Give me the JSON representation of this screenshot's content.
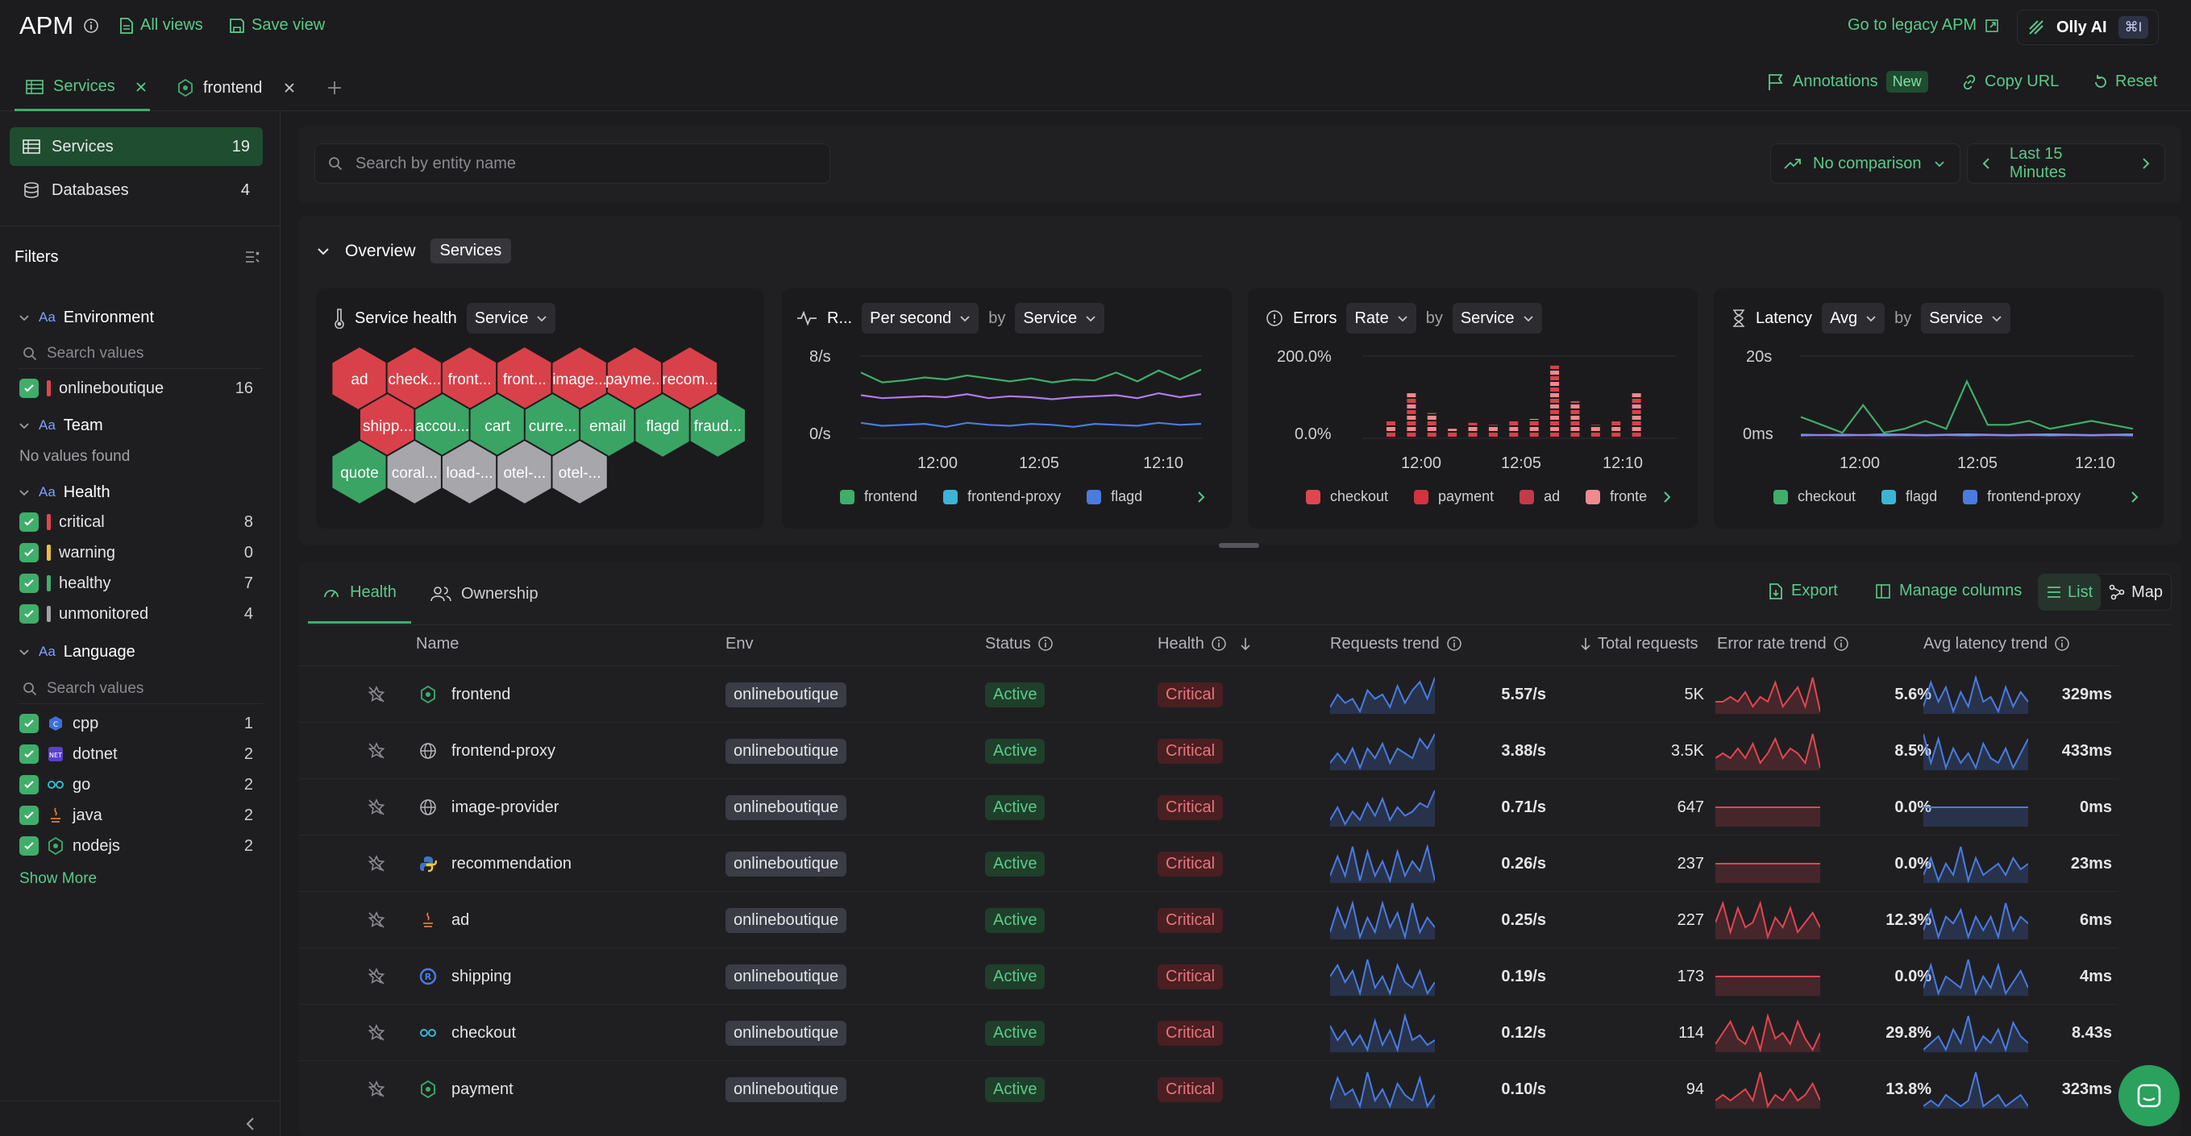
{
  "app": {
    "title": "APM",
    "all_views": "All views",
    "save_view": "Save view",
    "legacy": "Go to legacy APM",
    "olly": "Olly AI",
    "shortcut": "⌘I"
  },
  "tabs": [
    {
      "label": "Services"
    },
    {
      "label": "frontend"
    }
  ],
  "header_actions": {
    "annotations": "Annotations",
    "annotations_badge": "New",
    "copy_url": "Copy URL",
    "reset": "Reset"
  },
  "sidebar": {
    "nav": [
      {
        "label": "Services",
        "count": "19"
      },
      {
        "label": "Databases",
        "count": "4"
      }
    ],
    "filters_title": "Filters",
    "environment": {
      "title": "Environment",
      "search": "Search values",
      "items": [
        {
          "label": "onlineboutique",
          "count": "16"
        }
      ]
    },
    "team": {
      "title": "Team",
      "empty": "No values found"
    },
    "health": {
      "title": "Health",
      "items": [
        {
          "label": "critical",
          "count": "8",
          "color": "#e0464f"
        },
        {
          "label": "warning",
          "count": "0",
          "color": "#e8c23a"
        },
        {
          "label": "healthy",
          "count": "7",
          "color": "#3fae6a"
        },
        {
          "label": "unmonitored",
          "count": "4",
          "color": "#a0a0a6"
        }
      ]
    },
    "language": {
      "title": "Language",
      "search": "Search values",
      "items": [
        {
          "label": "cpp",
          "count": "1"
        },
        {
          "label": "dotnet",
          "count": "2"
        },
        {
          "label": "go",
          "count": "2"
        },
        {
          "label": "java",
          "count": "2"
        },
        {
          "label": "nodejs",
          "count": "2"
        }
      ],
      "show_more": "Show More"
    }
  },
  "toolbar": {
    "search_placeholder": "Search by entity name",
    "comparison": "No comparison",
    "time_range": "Last 15 Minutes"
  },
  "overview": {
    "label": "Overview",
    "chip": "Services"
  },
  "health_card": {
    "title": "Service health",
    "by": "Service",
    "hexes": [
      {
        "label": "ad",
        "state": "critical"
      },
      {
        "label": "check...",
        "state": "critical"
      },
      {
        "label": "front...",
        "state": "critical"
      },
      {
        "label": "front...",
        "state": "critical"
      },
      {
        "label": "image...",
        "state": "critical"
      },
      {
        "label": "payme...",
        "state": "critical"
      },
      {
        "label": "recom...",
        "state": "critical"
      },
      {
        "label": "shipp...",
        "state": "critical"
      },
      {
        "label": "accou...",
        "state": "healthy"
      },
      {
        "label": "cart",
        "state": "healthy"
      },
      {
        "label": "curre...",
        "state": "healthy"
      },
      {
        "label": "email",
        "state": "healthy"
      },
      {
        "label": "flagd",
        "state": "healthy"
      },
      {
        "label": "fraud...",
        "state": "healthy"
      },
      {
        "label": "quote",
        "state": "healthy"
      },
      {
        "label": "coral...",
        "state": "unmonitored"
      },
      {
        "label": "load-...",
        "state": "unmonitored"
      },
      {
        "label": "otel-...",
        "state": "unmonitored"
      },
      {
        "label": "otel-...",
        "state": "unmonitored"
      }
    ]
  },
  "rate_card": {
    "title": "R...",
    "agg": "Per second",
    "by_label": "by",
    "by": "Service",
    "y_top": "8/s",
    "y_bottom": "0/s",
    "x_ticks": [
      "12:00",
      "12:05",
      "12:10"
    ],
    "legend": [
      "frontend",
      "frontend-proxy",
      "flagd"
    ]
  },
  "errors_card": {
    "title": "Errors",
    "agg": "Rate",
    "by_label": "by",
    "by": "Service",
    "y_top": "200.0%",
    "y_bottom": "0.0%",
    "x_ticks": [
      "12:00",
      "12:05",
      "12:10"
    ],
    "legend": [
      "checkout",
      "payment",
      "ad",
      "fronte"
    ]
  },
  "latency_card": {
    "title": "Latency",
    "agg": "Avg",
    "by_label": "by",
    "by": "Service",
    "y_top": "20s",
    "y_bottom": "0ms",
    "x_ticks": [
      "12:00",
      "12:05",
      "12:10"
    ],
    "legend": [
      "checkout",
      "flagd",
      "frontend-proxy"
    ]
  },
  "chart_data": [
    {
      "type": "line",
      "title": "",
      "x": [
        "11:56",
        "11:57",
        "11:58",
        "11:59",
        "12:00",
        "12:01",
        "12:02",
        "12:03",
        "12:04",
        "12:05",
        "12:06",
        "12:07",
        "12:08",
        "12:09",
        "12:10",
        "12:11",
        "12:12"
      ],
      "ylim": [
        0,
        8
      ],
      "ylabel": "",
      "y_ticks": [
        "8/s",
        "0/s"
      ],
      "series": [
        {
          "name": "frontend",
          "values": [
            6.5,
            5.5,
            5.7,
            6.0,
            5.8,
            6.2,
            5.9,
            5.6,
            5.9,
            5.5,
            5.8,
            5.7,
            6.5,
            5.6,
            6.7,
            5.8,
            6.8
          ]
        },
        {
          "name": "frontend-proxy",
          "values": [
            4.2,
            3.9,
            4.0,
            4.1,
            4.0,
            4.3,
            3.9,
            4.1,
            4.0,
            3.8,
            4.0,
            4.1,
            4.2,
            3.9,
            4.4,
            4.0,
            4.3
          ]
        },
        {
          "name": "flagd",
          "values": [
            1.4,
            1.1,
            1.2,
            1.3,
            1.0,
            1.4,
            1.2,
            1.1,
            1.3,
            1.2,
            1.0,
            1.3,
            1.2,
            1.1,
            1.4,
            1.2,
            1.3
          ]
        }
      ]
    },
    {
      "type": "bar",
      "title": "",
      "ylim": [
        0,
        200
      ],
      "y_ticks": [
        "200.0%",
        "0.0%"
      ],
      "categories": [
        "11:59",
        "12:00",
        "12:01",
        "12:02",
        "12:03",
        "12:04",
        "12:05",
        "12:06",
        "12:07",
        "12:08",
        "12:09",
        "12:10",
        "12:11"
      ],
      "series": [
        {
          "name": "checkout",
          "values": [
            40,
            110,
            60,
            20,
            35,
            30,
            40,
            45,
            180,
            90,
            30,
            40,
            110
          ]
        }
      ]
    },
    {
      "type": "line",
      "title": "",
      "ylim": [
        0,
        20
      ],
      "y_ticks": [
        "20s",
        "0ms"
      ],
      "x": [
        "11:56",
        "11:57",
        "11:58",
        "11:59",
        "12:00",
        "12:01",
        "12:02",
        "12:03",
        "12:04",
        "12:05",
        "12:06",
        "12:07",
        "12:08",
        "12:09",
        "12:10",
        "12:11",
        "12:12"
      ],
      "series": [
        {
          "name": "checkout",
          "values": [
            5,
            3,
            1,
            8,
            1,
            2,
            4,
            2,
            14,
            3,
            3,
            4,
            2,
            3,
            4,
            3,
            2
          ]
        },
        {
          "name": "flagd",
          "values": [
            0.5,
            0.4,
            0.5,
            0.4,
            0.6,
            0.5,
            0.4,
            0.5,
            0.6,
            0.5,
            0.4,
            0.5,
            0.6,
            0.5,
            0.4,
            0.5,
            0.6
          ]
        },
        {
          "name": "frontend-proxy",
          "values": [
            0.3,
            0.4,
            0.3,
            0.4,
            0.3,
            0.4,
            0.3,
            0.4,
            0.3,
            0.4,
            0.3,
            0.4,
            0.3,
            0.4,
            0.3,
            0.4,
            0.3
          ]
        }
      ]
    }
  ],
  "table_tabs": {
    "health": "Health",
    "ownership": "Ownership",
    "export": "Export",
    "manage": "Manage columns",
    "list": "List",
    "map": "Map"
  },
  "columns": {
    "name": "Name",
    "env": "Env",
    "status": "Status",
    "health": "Health",
    "requests_trend": "Requests trend",
    "total": "Total requests",
    "error_trend": "Error rate trend",
    "latency_trend": "Avg latency trend"
  },
  "rows": [
    {
      "name": "frontend",
      "lang": "nodejs",
      "env": "onlineboutique",
      "status": "Active",
      "health": "Critical",
      "rate": "5.57/s",
      "total": "5K",
      "err": "5.6%",
      "lat": "329ms",
      "req_spark": [
        3,
        6,
        4,
        5,
        2,
        7,
        5,
        6,
        3,
        8,
        4,
        7,
        9,
        5,
        10
      ],
      "err_spark": [
        4,
        4,
        5,
        4,
        6,
        3,
        5,
        4,
        8,
        3,
        5,
        7,
        3,
        9,
        2
      ],
      "lat_spark": [
        3,
        8,
        4,
        7,
        2,
        6,
        3,
        9,
        4,
        5,
        2,
        7,
        3,
        6,
        4
      ]
    },
    {
      "name": "frontend-proxy",
      "lang": "globe",
      "env": "onlineboutique",
      "status": "Active",
      "health": "Critical",
      "rate": "3.88/s",
      "total": "3.5K",
      "err": "8.5%",
      "lat": "433ms",
      "req_spark": [
        3,
        5,
        3,
        6,
        2,
        6,
        4,
        7,
        3,
        6,
        5,
        4,
        8,
        6,
        9
      ],
      "err_spark": [
        4,
        5,
        4,
        6,
        4,
        7,
        3,
        5,
        8,
        4,
        6,
        5,
        3,
        9,
        2
      ],
      "lat_spark": [
        9,
        3,
        8,
        2,
        6,
        3,
        5,
        2,
        7,
        4,
        3,
        6,
        2,
        5,
        8
      ]
    },
    {
      "name": "image-provider",
      "lang": "globe",
      "env": "onlineboutique",
      "status": "Active",
      "health": "Critical",
      "rate": "0.71/s",
      "total": "647",
      "err": "0.0%",
      "lat": "0ms",
      "req_spark": [
        3,
        6,
        2,
        5,
        3,
        7,
        4,
        8,
        3,
        6,
        4,
        5,
        7,
        6,
        10
      ],
      "err_spark": [
        5,
        5,
        5,
        5,
        5,
        5,
        5,
        5,
        5,
        5,
        5,
        5,
        5,
        5,
        5
      ],
      "lat_spark": [
        5,
        5,
        5,
        5,
        5,
        5,
        5,
        5,
        5,
        5,
        5,
        5,
        5,
        5,
        5
      ]
    },
    {
      "name": "recommendation",
      "lang": "python",
      "env": "onlineboutique",
      "status": "Active",
      "health": "Critical",
      "rate": "0.26/s",
      "total": "237",
      "err": "0.0%",
      "lat": "23ms",
      "req_spark": [
        3,
        7,
        3,
        9,
        2,
        8,
        3,
        6,
        2,
        8,
        3,
        6,
        4,
        9,
        2
      ],
      "err_spark": [
        5,
        5,
        5,
        5,
        5,
        5,
        5,
        5,
        5,
        5,
        5,
        5,
        5,
        5,
        5
      ],
      "lat_spark": [
        4,
        7,
        3,
        6,
        4,
        9,
        3,
        7,
        4,
        5,
        6,
        4,
        7,
        5,
        6
      ]
    },
    {
      "name": "ad",
      "lang": "java",
      "env": "onlineboutique",
      "status": "Active",
      "health": "Critical",
      "rate": "0.25/s",
      "total": "227",
      "err": "12.3%",
      "lat": "6ms",
      "req_spark": [
        3,
        8,
        4,
        9,
        2,
        6,
        3,
        9,
        4,
        7,
        2,
        9,
        3,
        6,
        4
      ],
      "err_spark": [
        5,
        9,
        3,
        8,
        4,
        5,
        9,
        2,
        6,
        4,
        8,
        3,
        5,
        7,
        4
      ],
      "lat_spark": [
        4,
        7,
        3,
        6,
        5,
        7,
        3,
        6,
        4,
        6,
        3,
        8,
        4,
        6,
        5
      ]
    },
    {
      "name": "shipping",
      "lang": "rust",
      "env": "onlineboutique",
      "status": "Active",
      "health": "Critical",
      "rate": "0.19/s",
      "total": "173",
      "err": "0.0%",
      "lat": "4ms",
      "req_spark": [
        6,
        8,
        5,
        7,
        3,
        9,
        4,
        6,
        3,
        8,
        5,
        4,
        7,
        3,
        5
      ],
      "err_spark": [
        5,
        5,
        5,
        5,
        5,
        5,
        5,
        5,
        5,
        5,
        5,
        5,
        5,
        5,
        5
      ],
      "lat_spark": [
        4,
        8,
        3,
        6,
        5,
        4,
        9,
        3,
        6,
        4,
        8,
        3,
        5,
        7,
        4
      ]
    },
    {
      "name": "checkout",
      "lang": "go",
      "env": "onlineboutique",
      "status": "Active",
      "health": "Critical",
      "rate": "0.12/s",
      "total": "114",
      "err": "29.8%",
      "lat": "8.43s",
      "req_spark": [
        7,
        4,
        6,
        3,
        5,
        2,
        8,
        3,
        6,
        2,
        9,
        4,
        5,
        3,
        4
      ],
      "err_spark": [
        3,
        5,
        7,
        4,
        3,
        6,
        2,
        8,
        4,
        5,
        3,
        7,
        4,
        2,
        5
      ],
      "lat_spark": [
        3,
        4,
        5,
        3,
        6,
        4,
        8,
        3,
        5,
        4,
        6,
        3,
        7,
        5,
        4
      ]
    },
    {
      "name": "payment",
      "lang": "nodejs",
      "env": "onlineboutique",
      "status": "Active",
      "health": "Critical",
      "rate": "0.10/s",
      "total": "94",
      "err": "13.8%",
      "lat": "323ms",
      "req_spark": [
        4,
        8,
        5,
        6,
        3,
        9,
        4,
        6,
        3,
        7,
        5,
        4,
        8,
        3,
        5
      ],
      "err_spark": [
        4,
        5,
        4,
        5,
        6,
        4,
        9,
        3,
        5,
        4,
        6,
        4,
        5,
        7,
        4
      ],
      "lat_spark": [
        3,
        4,
        3,
        5,
        4,
        3,
        4,
        9,
        3,
        4,
        5,
        3,
        4,
        5,
        3
      ]
    }
  ],
  "colors": {
    "accent": "#3fae6a",
    "critical": "#e0464f",
    "healthy": "#3fae6a",
    "unmonitored": "#a0a0a6",
    "req_line": "#4a7be0",
    "err_line": "#e0464f"
  }
}
